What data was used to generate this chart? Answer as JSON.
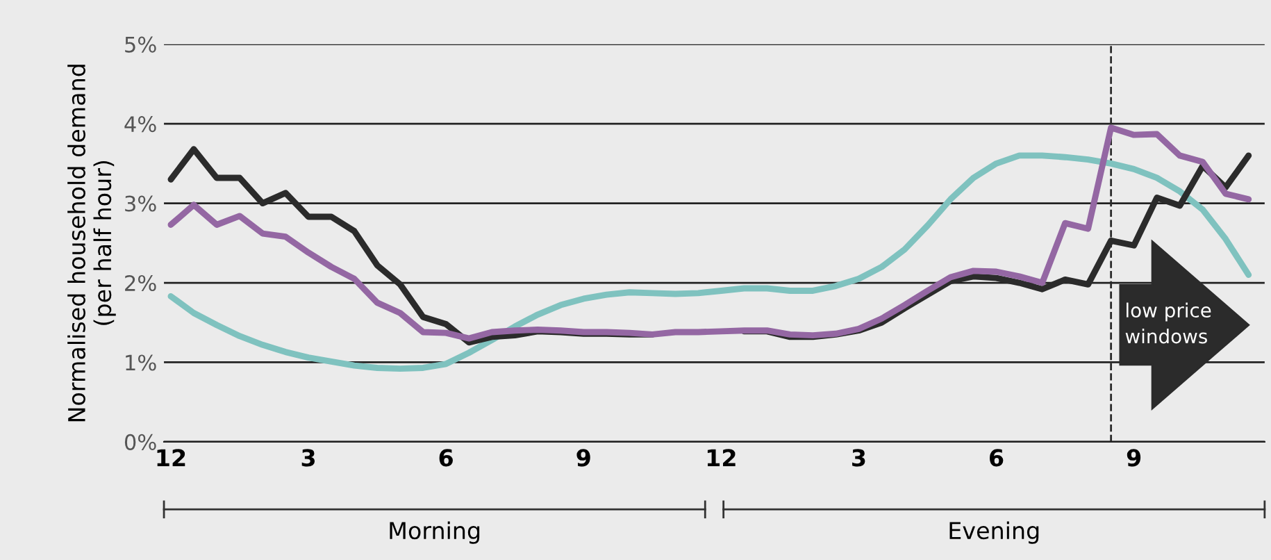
{
  "chart_data": {
    "type": "line",
    "ylabel": "Normalised household demand\n(per half hour)",
    "categories": [
      "12",
      null,
      null,
      null,
      null,
      null,
      "3",
      null,
      null,
      null,
      null,
      null,
      "6",
      null,
      null,
      null,
      null,
      null,
      "9",
      null,
      null,
      null,
      null,
      null,
      "12",
      null,
      null,
      null,
      null,
      null,
      "3",
      null,
      null,
      null,
      null,
      null,
      "6",
      null,
      null,
      null,
      null,
      null,
      "9",
      null,
      null,
      null,
      null,
      null
    ],
    "series": [
      {
        "color": "#7fc2bf",
        "values": [
          1.83,
          1.62,
          1.47,
          1.33,
          1.22,
          1.13,
          1.06,
          1.01,
          0.96,
          0.93,
          0.92,
          0.93,
          0.98,
          1.12,
          1.28,
          1.45,
          1.6,
          1.72,
          1.8,
          1.85,
          1.88,
          1.87,
          1.86,
          1.87,
          1.9,
          1.93,
          1.93,
          1.9,
          1.9,
          1.96,
          2.05,
          2.2,
          2.42,
          2.72,
          3.05,
          3.32,
          3.5,
          3.6,
          3.6,
          3.58,
          3.55,
          3.5,
          3.43,
          3.32,
          3.15,
          2.92,
          2.55,
          2.1
        ]
      },
      {
        "color": "#2b2b2b",
        "values": [
          3.3,
          3.68,
          3.32,
          3.32,
          3.0,
          3.13,
          2.83,
          2.83,
          2.65,
          2.22,
          1.98,
          1.57,
          1.48,
          1.25,
          1.32,
          1.34,
          1.39,
          1.38,
          1.36,
          1.36,
          1.35,
          1.35,
          null,
          null,
          null,
          1.39,
          1.39,
          1.32,
          1.32,
          1.35,
          1.4,
          1.5,
          1.68,
          1.85,
          2.02,
          2.08,
          2.06,
          2.0,
          1.92,
          2.04,
          1.98,
          2.53,
          2.47,
          3.07,
          2.97,
          3.47,
          3.2,
          3.6
        ]
      },
      {
        "color": "#9467a3",
        "values": [
          2.73,
          2.98,
          2.73,
          2.84,
          2.62,
          2.58,
          2.38,
          2.2,
          2.05,
          1.75,
          1.62,
          1.38,
          1.37,
          1.3,
          1.38,
          1.4,
          1.41,
          1.4,
          1.38,
          1.38,
          1.37,
          1.35,
          1.38,
          1.38,
          1.39,
          1.4,
          1.4,
          1.35,
          1.34,
          1.36,
          1.42,
          1.55,
          1.72,
          1.9,
          2.07,
          2.15,
          2.14,
          2.08,
          2.0,
          2.75,
          2.68,
          3.95,
          3.86,
          3.87,
          3.6,
          3.52,
          3.12,
          3.05
        ]
      }
    ],
    "ylim": [
      0,
      5
    ],
    "yticks": [
      {
        "value": 0,
        "label": "0%"
      },
      {
        "value": 1,
        "label": "1%"
      },
      {
        "value": 2,
        "label": "2%"
      },
      {
        "value": 3,
        "label": "3%"
      },
      {
        "value": 4,
        "label": "4%"
      },
      {
        "value": 5,
        "label": "5%"
      }
    ],
    "grid": "y",
    "marker": "none",
    "line_style": "solid",
    "legend": false,
    "annotations": [
      "low price windows",
      "Morning",
      "Evening"
    ]
  }
}
